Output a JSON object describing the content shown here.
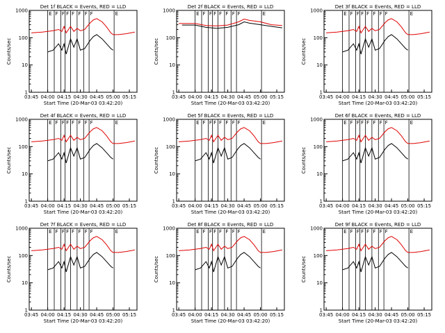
{
  "colors": {
    "events": "#000000",
    "lld": "#e00000",
    "axis": "#000000",
    "background": "#ffffff"
  },
  "chart_data": {
    "type": "line",
    "log_y": true,
    "ylim": [
      1,
      1000
    ],
    "yticks": [
      "1",
      "10",
      "100",
      "1000"
    ],
    "xticks": [
      "03:45",
      "04:00",
      "04:15",
      "04:30",
      "04:45",
      "05:00",
      "05:15"
    ],
    "xlabel": "Start Time (20-Mar-03 03:42:20)",
    "ylabel": "Counts/sec",
    "marker_labels": [
      "E",
      "F",
      "F",
      "F",
      "F",
      "F",
      "F",
      "F",
      "E"
    ],
    "panels": [
      {
        "title": "Det 1f BLACK = Events, RED = LLD",
        "events": {
          "name": "Events",
          "x": [
            "04:00",
            "04:05",
            "04:10",
            "04:13",
            "04:15",
            "04:17",
            "04:21",
            "04:24",
            "04:27",
            "04:30",
            "04:34",
            "04:39",
            "04:42",
            "04:45",
            "04:50",
            "04:54",
            "04:58",
            "05:00"
          ],
          "y": [
            30,
            35,
            60,
            35,
            60,
            25,
            90,
            45,
            90,
            35,
            40,
            80,
            110,
            130,
            90,
            60,
            40,
            35
          ]
        },
        "lld": {
          "name": "LLD",
          "x": [
            "03:45",
            "03:55",
            "04:00",
            "04:05",
            "04:10",
            "04:13",
            "04:15",
            "04:17",
            "04:21",
            "04:24",
            "04:27",
            "04:30",
            "04:34",
            "04:39",
            "04:42",
            "04:45",
            "04:50",
            "04:54",
            "04:58",
            "05:00",
            "05:05",
            "05:12",
            "05:20"
          ],
          "y": [
            150,
            160,
            170,
            180,
            200,
            170,
            260,
            150,
            260,
            170,
            220,
            180,
            200,
            350,
            450,
            500,
            380,
            250,
            150,
            130,
            130,
            140,
            160
          ]
        }
      },
      {
        "title": "Det 2f BLACK = Events, RED = LLD",
        "events": {
          "name": "Events",
          "x": [
            "03:48",
            "04:00",
            "04:10",
            "04:20",
            "04:30",
            "04:40",
            "04:45",
            "04:50",
            "05:00",
            "05:10",
            "05:20"
          ],
          "y": [
            290,
            290,
            240,
            220,
            240,
            300,
            380,
            340,
            300,
            260,
            230
          ]
        },
        "lld": {
          "name": "LLD",
          "x": [
            "03:45",
            "04:00",
            "04:10",
            "04:20",
            "04:30",
            "04:40",
            "04:45",
            "04:50",
            "05:00",
            "05:10",
            "05:20"
          ],
          "y": [
            330,
            330,
            280,
            270,
            290,
            380,
            480,
            430,
            380,
            300,
            280
          ]
        }
      },
      {
        "title": "Det 3f BLACK = Events, RED = LLD",
        "events": {
          "name": "Events",
          "x": [
            "04:00",
            "04:05",
            "04:10",
            "04:13",
            "04:15",
            "04:17",
            "04:21",
            "04:24",
            "04:27",
            "04:30",
            "04:34",
            "04:39",
            "04:42",
            "04:45",
            "04:50",
            "04:54",
            "04:58",
            "05:00"
          ],
          "y": [
            30,
            35,
            60,
            35,
            60,
            25,
            90,
            45,
            90,
            35,
            40,
            80,
            110,
            130,
            90,
            60,
            40,
            35
          ]
        },
        "lld": {
          "name": "LLD",
          "x": [
            "03:45",
            "03:55",
            "04:00",
            "04:05",
            "04:10",
            "04:13",
            "04:15",
            "04:17",
            "04:21",
            "04:24",
            "04:27",
            "04:30",
            "04:34",
            "04:39",
            "04:42",
            "04:45",
            "04:50",
            "04:54",
            "04:58",
            "05:00",
            "05:05",
            "05:12",
            "05:20"
          ],
          "y": [
            150,
            160,
            170,
            180,
            200,
            170,
            260,
            150,
            260,
            170,
            220,
            180,
            200,
            350,
            450,
            500,
            380,
            250,
            150,
            130,
            130,
            140,
            160
          ]
        }
      },
      {
        "title": "Det 4f BLACK = Events, RED = LLD",
        "events": {
          "name": "Events",
          "x": [
            "04:00",
            "04:05",
            "04:10",
            "04:13",
            "04:15",
            "04:17",
            "04:21",
            "04:24",
            "04:27",
            "04:30",
            "04:34",
            "04:39",
            "04:42",
            "04:45",
            "04:50",
            "04:54",
            "04:58",
            "05:00"
          ],
          "y": [
            30,
            35,
            60,
            35,
            60,
            25,
            90,
            45,
            90,
            35,
            40,
            80,
            110,
            130,
            90,
            60,
            40,
            35
          ]
        },
        "lld": {
          "name": "LLD",
          "x": [
            "03:45",
            "03:55",
            "04:00",
            "04:05",
            "04:10",
            "04:13",
            "04:15",
            "04:17",
            "04:21",
            "04:24",
            "04:27",
            "04:30",
            "04:34",
            "04:39",
            "04:42",
            "04:45",
            "04:50",
            "04:54",
            "04:58",
            "05:00",
            "05:05",
            "05:12",
            "05:20"
          ],
          "y": [
            150,
            160,
            170,
            180,
            200,
            170,
            260,
            150,
            260,
            170,
            220,
            180,
            200,
            350,
            450,
            500,
            380,
            250,
            150,
            130,
            130,
            140,
            160
          ]
        }
      },
      {
        "title": "Det 5f BLACK = Events, RED = LLD",
        "events": {
          "name": "Events",
          "x": [
            "04:00",
            "04:05",
            "04:10",
            "04:13",
            "04:15",
            "04:17",
            "04:21",
            "04:24",
            "04:27",
            "04:30",
            "04:34",
            "04:39",
            "04:42",
            "04:45",
            "04:50",
            "04:54",
            "04:58",
            "05:00"
          ],
          "y": [
            30,
            35,
            60,
            35,
            60,
            25,
            90,
            45,
            90,
            35,
            40,
            80,
            110,
            130,
            90,
            60,
            40,
            35
          ]
        },
        "lld": {
          "name": "LLD",
          "x": [
            "03:45",
            "03:55",
            "04:00",
            "04:05",
            "04:10",
            "04:13",
            "04:15",
            "04:17",
            "04:21",
            "04:24",
            "04:27",
            "04:30",
            "04:34",
            "04:39",
            "04:42",
            "04:45",
            "04:50",
            "04:54",
            "04:58",
            "05:00",
            "05:05",
            "05:12",
            "05:20"
          ],
          "y": [
            150,
            160,
            170,
            180,
            200,
            170,
            260,
            150,
            260,
            170,
            220,
            180,
            200,
            350,
            450,
            500,
            380,
            250,
            150,
            130,
            130,
            140,
            160
          ]
        }
      },
      {
        "title": "Det 6f BLACK = Events, RED = LLD",
        "events": {
          "name": "Events",
          "x": [
            "04:00",
            "04:05",
            "04:10",
            "04:13",
            "04:15",
            "04:17",
            "04:21",
            "04:24",
            "04:27",
            "04:30",
            "04:34",
            "04:39",
            "04:42",
            "04:45",
            "04:50",
            "04:54",
            "04:58",
            "05:00"
          ],
          "y": [
            30,
            35,
            60,
            35,
            60,
            25,
            90,
            45,
            90,
            35,
            40,
            80,
            110,
            130,
            90,
            60,
            40,
            35
          ]
        },
        "lld": {
          "name": "LLD",
          "x": [
            "03:45",
            "03:55",
            "04:00",
            "04:05",
            "04:10",
            "04:13",
            "04:15",
            "04:17",
            "04:21",
            "04:24",
            "04:27",
            "04:30",
            "04:34",
            "04:39",
            "04:42",
            "04:45",
            "04:50",
            "04:54",
            "04:58",
            "05:00",
            "05:05",
            "05:12",
            "05:20"
          ],
          "y": [
            150,
            160,
            170,
            180,
            200,
            170,
            260,
            150,
            260,
            170,
            220,
            180,
            200,
            350,
            450,
            500,
            380,
            250,
            150,
            130,
            130,
            140,
            160
          ]
        }
      },
      {
        "title": "Det 7f BLACK = Events, RED = LLD",
        "events": {
          "name": "Events",
          "x": [
            "04:00",
            "04:05",
            "04:10",
            "04:13",
            "04:15",
            "04:17",
            "04:21",
            "04:24",
            "04:27",
            "04:30",
            "04:34",
            "04:39",
            "04:42",
            "04:45",
            "04:50",
            "04:54",
            "04:58",
            "05:00"
          ],
          "y": [
            30,
            35,
            60,
            35,
            60,
            25,
            90,
            45,
            90,
            35,
            40,
            80,
            110,
            130,
            90,
            60,
            40,
            35
          ]
        },
        "lld": {
          "name": "LLD",
          "x": [
            "03:45",
            "03:55",
            "04:00",
            "04:05",
            "04:10",
            "04:13",
            "04:15",
            "04:17",
            "04:21",
            "04:24",
            "04:27",
            "04:30",
            "04:34",
            "04:39",
            "04:42",
            "04:45",
            "04:50",
            "04:54",
            "04:58",
            "05:00",
            "05:05",
            "05:12",
            "05:20"
          ],
          "y": [
            150,
            160,
            170,
            180,
            200,
            170,
            260,
            150,
            260,
            170,
            220,
            180,
            200,
            350,
            450,
            500,
            380,
            250,
            150,
            130,
            130,
            140,
            160
          ]
        }
      },
      {
        "title": "Det 8f BLACK = Events, RED = LLD",
        "events": {
          "name": "Events",
          "x": [
            "04:00",
            "04:05",
            "04:10",
            "04:13",
            "04:15",
            "04:17",
            "04:21",
            "04:24",
            "04:27",
            "04:30",
            "04:34",
            "04:39",
            "04:42",
            "04:45",
            "04:50",
            "04:54",
            "04:58",
            "05:00"
          ],
          "y": [
            30,
            35,
            60,
            35,
            60,
            25,
            90,
            45,
            90,
            35,
            40,
            80,
            110,
            130,
            90,
            60,
            40,
            35
          ]
        },
        "lld": {
          "name": "LLD",
          "x": [
            "03:45",
            "03:55",
            "04:00",
            "04:05",
            "04:10",
            "04:13",
            "04:15",
            "04:17",
            "04:21",
            "04:24",
            "04:27",
            "04:30",
            "04:34",
            "04:39",
            "04:42",
            "04:45",
            "04:50",
            "04:54",
            "04:58",
            "05:00",
            "05:05",
            "05:12",
            "05:20"
          ],
          "y": [
            150,
            160,
            170,
            180,
            200,
            170,
            260,
            150,
            260,
            170,
            220,
            180,
            200,
            350,
            450,
            500,
            380,
            250,
            150,
            130,
            130,
            140,
            160
          ]
        }
      },
      {
        "title": "Det 9f BLACK = Events, RED = LLD",
        "events": {
          "name": "Events",
          "x": [
            "04:00",
            "04:05",
            "04:10",
            "04:13",
            "04:15",
            "04:17",
            "04:21",
            "04:24",
            "04:27",
            "04:30",
            "04:34",
            "04:39",
            "04:42",
            "04:45",
            "04:50",
            "04:54",
            "04:58",
            "05:00"
          ],
          "y": [
            30,
            35,
            60,
            35,
            60,
            25,
            90,
            45,
            90,
            35,
            40,
            80,
            110,
            130,
            90,
            60,
            40,
            35
          ]
        },
        "lld": {
          "name": "LLD",
          "x": [
            "03:45",
            "03:55",
            "04:00",
            "04:05",
            "04:10",
            "04:13",
            "04:15",
            "04:17",
            "04:21",
            "04:24",
            "04:27",
            "04:30",
            "04:34",
            "04:39",
            "04:42",
            "04:45",
            "04:50",
            "04:54",
            "04:58",
            "05:00",
            "05:05",
            "05:12",
            "05:20"
          ],
          "y": [
            150,
            160,
            170,
            180,
            200,
            170,
            260,
            150,
            260,
            170,
            220,
            180,
            200,
            350,
            450,
            500,
            380,
            250,
            150,
            130,
            130,
            140,
            160
          ]
        }
      }
    ]
  }
}
